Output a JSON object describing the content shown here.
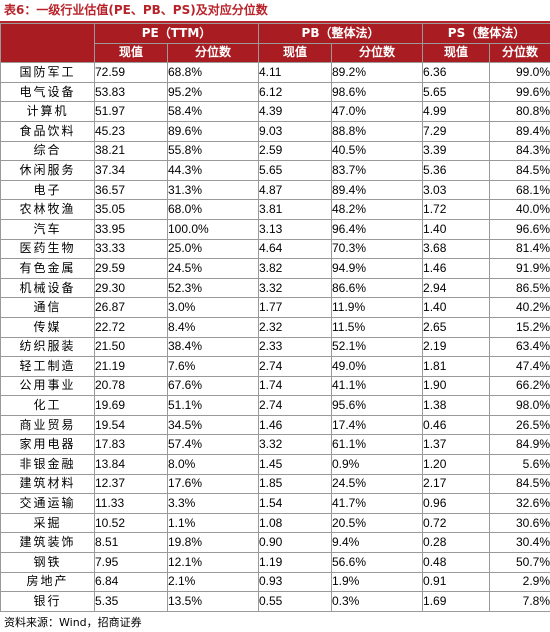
{
  "caption": "表6：一级行业估值(PE、PB、PS)及对应分位数",
  "header": {
    "groups": [
      "PE（TTM）",
      "PB（整体法）",
      "PS（整体法）"
    ],
    "sub": [
      "现值",
      "分位数",
      "现值",
      "分位数",
      "现值",
      "分位数"
    ]
  },
  "rows": [
    {
      "name": "国防军工",
      "pe": "72.59",
      "pe_pct": "68.8%",
      "pb": "4.11",
      "pb_pct": "89.2%",
      "ps": "6.36",
      "ps_pct": "99.0%"
    },
    {
      "name": "电气设备",
      "pe": "53.83",
      "pe_pct": "95.2%",
      "pb": "6.12",
      "pb_pct": "98.6%",
      "ps": "5.65",
      "ps_pct": "99.6%"
    },
    {
      "name": "计算机",
      "pe": "51.97",
      "pe_pct": "58.4%",
      "pb": "4.39",
      "pb_pct": "47.0%",
      "ps": "4.99",
      "ps_pct": "80.8%"
    },
    {
      "name": "食品饮料",
      "pe": "45.23",
      "pe_pct": "89.6%",
      "pb": "9.03",
      "pb_pct": "88.8%",
      "ps": "7.29",
      "ps_pct": "89.4%"
    },
    {
      "name": "综合",
      "pe": "38.21",
      "pe_pct": "55.8%",
      "pb": "2.59",
      "pb_pct": "40.5%",
      "ps": "3.39",
      "ps_pct": "84.3%"
    },
    {
      "name": "休闲服务",
      "pe": "37.34",
      "pe_pct": "44.3%",
      "pb": "5.65",
      "pb_pct": "83.7%",
      "ps": "5.36",
      "ps_pct": "84.5%"
    },
    {
      "name": "电子",
      "pe": "36.57",
      "pe_pct": "31.3%",
      "pb": "4.87",
      "pb_pct": "89.4%",
      "ps": "3.03",
      "ps_pct": "68.1%"
    },
    {
      "name": "农林牧渔",
      "pe": "35.05",
      "pe_pct": "68.0%",
      "pb": "3.81",
      "pb_pct": "48.2%",
      "ps": "1.72",
      "ps_pct": "40.0%"
    },
    {
      "name": "汽车",
      "pe": "33.95",
      "pe_pct": "100.0%",
      "pb": "3.13",
      "pb_pct": "96.4%",
      "ps": "1.40",
      "ps_pct": "96.6%"
    },
    {
      "name": "医药生物",
      "pe": "33.33",
      "pe_pct": "25.0%",
      "pb": "4.64",
      "pb_pct": "70.3%",
      "ps": "3.68",
      "ps_pct": "81.4%"
    },
    {
      "name": "有色金属",
      "pe": "29.59",
      "pe_pct": "24.5%",
      "pb": "3.82",
      "pb_pct": "94.9%",
      "ps": "1.46",
      "ps_pct": "91.9%"
    },
    {
      "name": "机械设备",
      "pe": "29.30",
      "pe_pct": "52.3%",
      "pb": "3.32",
      "pb_pct": "86.6%",
      "ps": "2.94",
      "ps_pct": "86.5%"
    },
    {
      "name": "通信",
      "pe": "26.87",
      "pe_pct": "3.0%",
      "pb": "1.77",
      "pb_pct": "11.9%",
      "ps": "1.40",
      "ps_pct": "40.2%"
    },
    {
      "name": "传媒",
      "pe": "22.72",
      "pe_pct": "8.4%",
      "pb": "2.32",
      "pb_pct": "11.5%",
      "ps": "2.65",
      "ps_pct": "15.2%"
    },
    {
      "name": "纺织服装",
      "pe": "21.50",
      "pe_pct": "38.4%",
      "pb": "2.33",
      "pb_pct": "52.1%",
      "ps": "2.19",
      "ps_pct": "63.4%"
    },
    {
      "name": "轻工制造",
      "pe": "21.19",
      "pe_pct": "7.6%",
      "pb": "2.74",
      "pb_pct": "49.0%",
      "ps": "1.81",
      "ps_pct": "47.4%"
    },
    {
      "name": "公用事业",
      "pe": "20.78",
      "pe_pct": "67.6%",
      "pb": "1.74",
      "pb_pct": "41.1%",
      "ps": "1.90",
      "ps_pct": "66.2%"
    },
    {
      "name": "化工",
      "pe": "19.69",
      "pe_pct": "51.1%",
      "pb": "2.74",
      "pb_pct": "95.6%",
      "ps": "1.38",
      "ps_pct": "98.0%"
    },
    {
      "name": "商业贸易",
      "pe": "19.54",
      "pe_pct": "34.5%",
      "pb": "1.46",
      "pb_pct": "17.4%",
      "ps": "0.46",
      "ps_pct": "26.5%"
    },
    {
      "name": "家用电器",
      "pe": "17.83",
      "pe_pct": "57.4%",
      "pb": "3.32",
      "pb_pct": "61.1%",
      "ps": "1.37",
      "ps_pct": "84.9%"
    },
    {
      "name": "非银金融",
      "pe": "13.84",
      "pe_pct": "8.0%",
      "pb": "1.45",
      "pb_pct": "0.9%",
      "ps": "1.20",
      "ps_pct": "5.6%"
    },
    {
      "name": "建筑材料",
      "pe": "12.37",
      "pe_pct": "17.6%",
      "pb": "1.85",
      "pb_pct": "24.5%",
      "ps": "2.17",
      "ps_pct": "84.5%"
    },
    {
      "name": "交通运输",
      "pe": "11.33",
      "pe_pct": "3.3%",
      "pb": "1.54",
      "pb_pct": "41.7%",
      "ps": "0.96",
      "ps_pct": "32.6%"
    },
    {
      "name": "采掘",
      "pe": "10.52",
      "pe_pct": "1.1%",
      "pb": "1.08",
      "pb_pct": "20.5%",
      "ps": "0.72",
      "ps_pct": "30.6%"
    },
    {
      "name": "建筑装饰",
      "pe": "8.51",
      "pe_pct": "19.8%",
      "pb": "0.90",
      "pb_pct": "9.4%",
      "ps": "0.28",
      "ps_pct": "30.4%"
    },
    {
      "name": "钢铁",
      "pe": "7.95",
      "pe_pct": "12.1%",
      "pb": "1.19",
      "pb_pct": "56.6%",
      "ps": "0.48",
      "ps_pct": "50.7%"
    },
    {
      "name": "房地产",
      "pe": "6.84",
      "pe_pct": "2.1%",
      "pb": "0.93",
      "pb_pct": "1.9%",
      "ps": "0.91",
      "ps_pct": "2.9%"
    },
    {
      "name": "银行",
      "pe": "5.35",
      "pe_pct": "13.5%",
      "pb": "0.55",
      "pb_pct": "0.3%",
      "ps": "1.69",
      "ps_pct": "7.8%"
    }
  ],
  "source": "资料来源：Wind，招商证券"
}
